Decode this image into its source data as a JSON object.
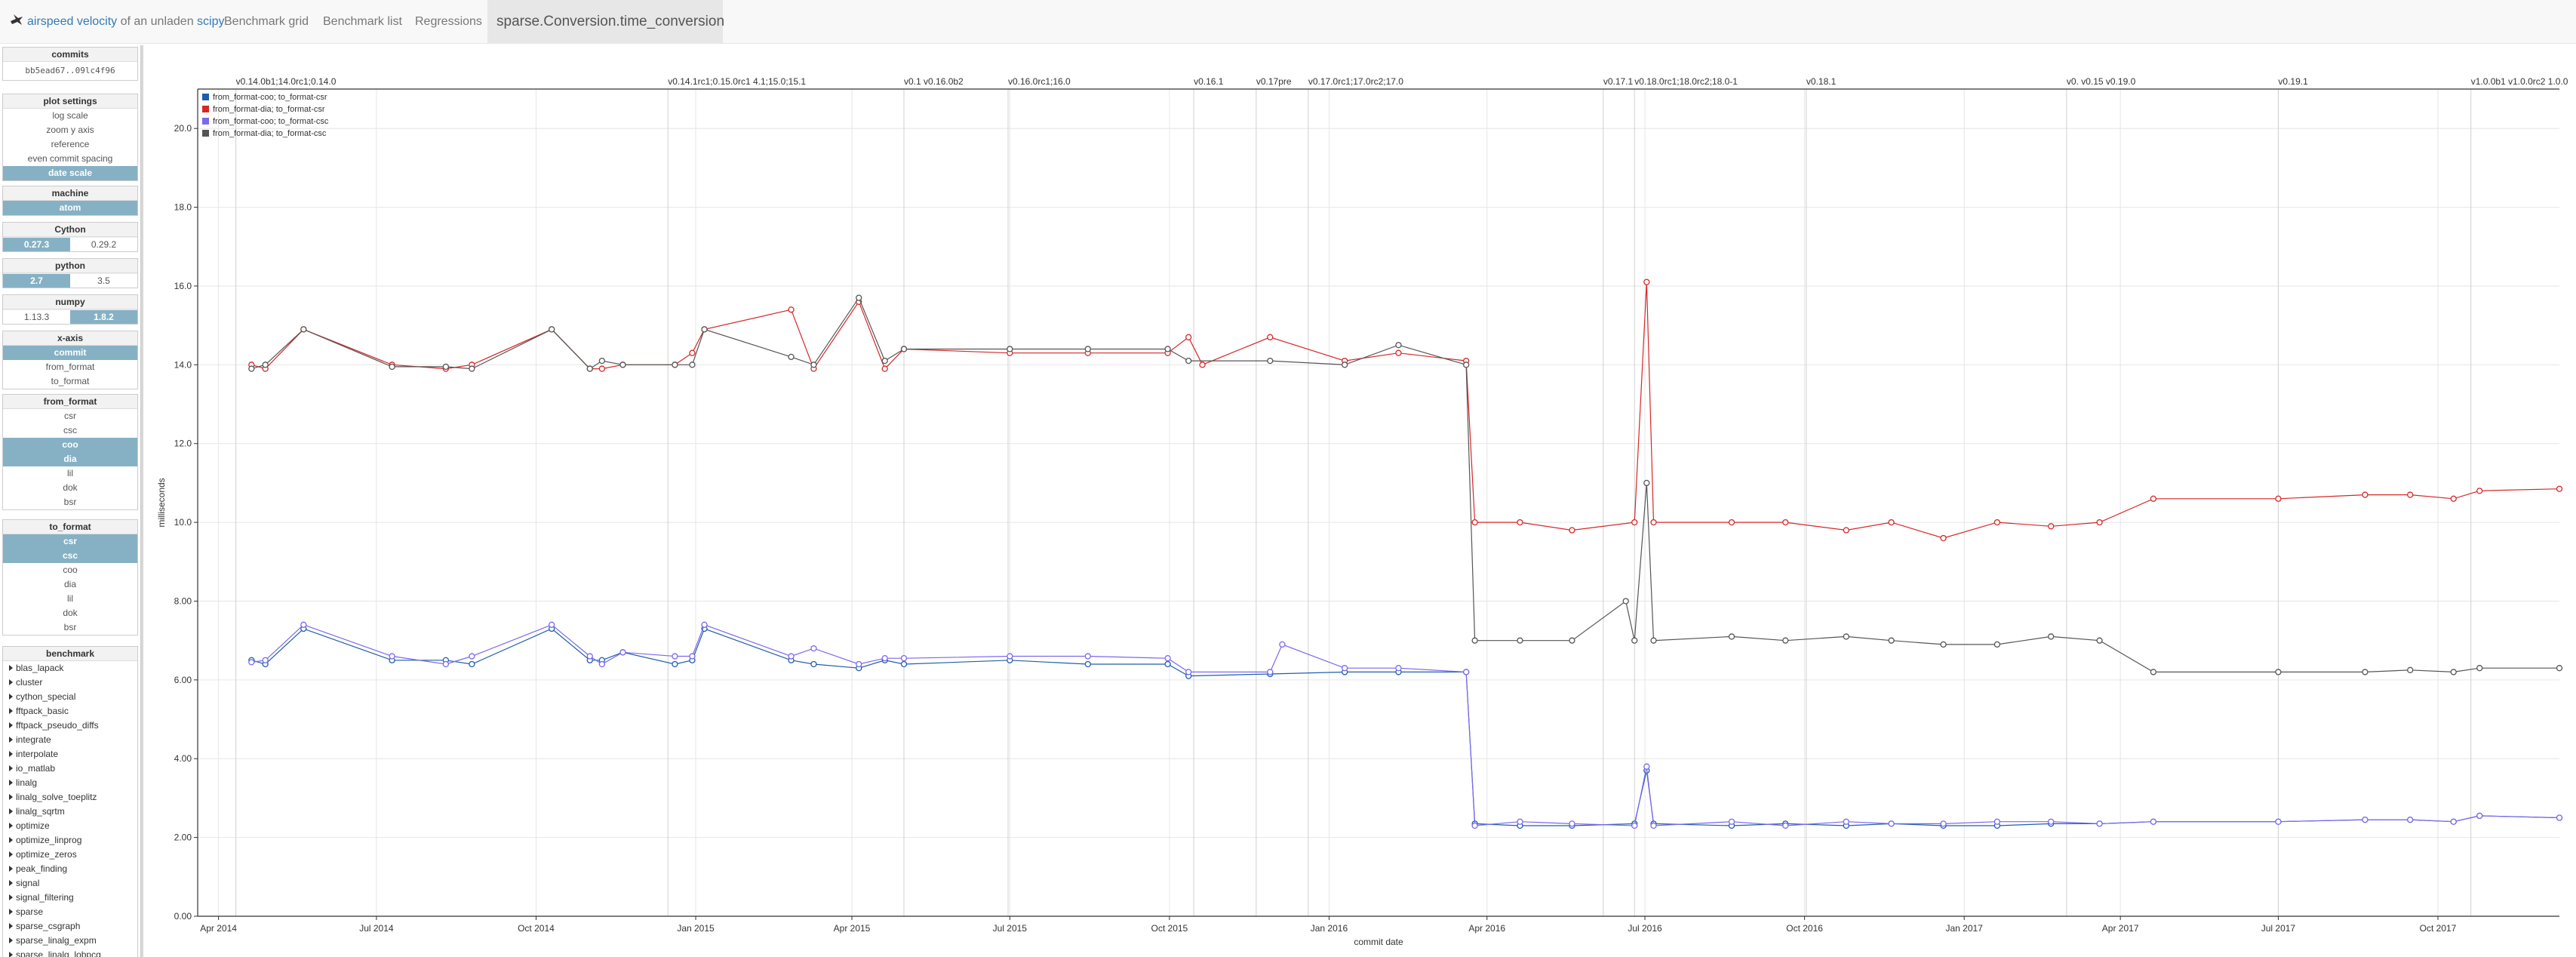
{
  "navbar": {
    "brand_prefix": "airspeed velocity",
    "brand_middle": " of an unladen ",
    "brand_suffix": "scipy",
    "links": [
      "Benchmark grid",
      "Benchmark list",
      "Regressions"
    ],
    "active": "sparse.Conversion.time_conversion"
  },
  "sidebar": {
    "commits": {
      "title": "commits",
      "value": "bb5ead67..09lc4f96"
    },
    "plot_settings": {
      "title": "plot settings",
      "options": [
        {
          "label": "log scale",
          "on": false
        },
        {
          "label": "zoom y axis",
          "on": false
        },
        {
          "label": "reference",
          "on": false
        },
        {
          "label": "even commit spacing",
          "on": false
        },
        {
          "label": "date scale",
          "on": true
        }
      ]
    },
    "machine": {
      "title": "machine",
      "value": "atom"
    },
    "cython": {
      "title": "Cython",
      "a": "0.27.3",
      "b": "0.29.2"
    },
    "python": {
      "title": "python",
      "a": "2.7",
      "b": "3.5"
    },
    "numpy": {
      "title": "numpy",
      "a": "1.13.3",
      "b": "1.8.2"
    },
    "xaxis": {
      "title": "x-axis",
      "options": [
        {
          "label": "commit",
          "on": true
        },
        {
          "label": "from_format",
          "on": false
        },
        {
          "label": "to_format",
          "on": false
        }
      ]
    },
    "from_format": {
      "title": "from_format",
      "options": [
        {
          "label": "csr",
          "on": false
        },
        {
          "label": "csc",
          "on": false
        },
        {
          "label": "coo",
          "on": true
        },
        {
          "label": "dia",
          "on": true
        },
        {
          "label": "lil",
          "on": false
        },
        {
          "label": "dok",
          "on": false
        },
        {
          "label": "bsr",
          "on": false
        }
      ]
    },
    "to_format": {
      "title": "to_format",
      "options": [
        {
          "label": "csr",
          "on": true
        },
        {
          "label": "csc",
          "on": true
        },
        {
          "label": "coo",
          "on": false
        },
        {
          "label": "dia",
          "on": false
        },
        {
          "label": "lil",
          "on": false
        },
        {
          "label": "dok",
          "on": false
        },
        {
          "label": "bsr",
          "on": false
        }
      ]
    },
    "benchmark": {
      "title": "benchmark",
      "items": [
        "blas_lapack",
        "cluster",
        "cython_special",
        "fftpack_basic",
        "fftpack_pseudo_diffs",
        "integrate",
        "interpolate",
        "io_matlab",
        "linalg",
        "linalg_solve_toeplitz",
        "linalg_sqrtm",
        "optimize",
        "optimize_linprog",
        "optimize_zeros",
        "peak_finding",
        "signal",
        "signal_filtering",
        "sparse",
        "sparse_csgraph",
        "sparse_linalg_expm",
        "sparse_linalg_lobpcg"
      ]
    }
  },
  "chart_data": {
    "type": "line",
    "title": "",
    "xlabel": "commit date",
    "ylabel": "milliseconds",
    "x_axis_type": "date",
    "xlim": [
      "2014-03-20",
      "2017-12-10"
    ],
    "ylim": [
      0,
      21
    ],
    "y_ticks": [
      "0.00",
      "2.00",
      "4.00",
      "6.00",
      "8.00",
      "10.0",
      "12.0",
      "14.0",
      "16.0",
      "18.0",
      "20.0"
    ],
    "x_ticks": [
      {
        "label": "Apr 2014",
        "date": "2014-04-01"
      },
      {
        "label": "Jul 2014",
        "date": "2014-07-01"
      },
      {
        "label": "Oct 2014",
        "date": "2014-10-01"
      },
      {
        "label": "Jan 2015",
        "date": "2015-01-01"
      },
      {
        "label": "Apr 2015",
        "date": "2015-04-01"
      },
      {
        "label": "Jul 2015",
        "date": "2015-07-01"
      },
      {
        "label": "Oct 2015",
        "date": "2015-10-01"
      },
      {
        "label": "Jan 2016",
        "date": "2016-01-01"
      },
      {
        "label": "Apr 2016",
        "date": "2016-04-01"
      },
      {
        "label": "Jul 2016",
        "date": "2016-07-01"
      },
      {
        "label": "Oct 2016",
        "date": "2016-10-01"
      },
      {
        "label": "Jan 2017",
        "date": "2017-01-01"
      },
      {
        "label": "Apr 2017",
        "date": "2017-04-01"
      },
      {
        "label": "Jul 2017",
        "date": "2017-07-01"
      },
      {
        "label": "Oct 2017",
        "date": "2017-10-01"
      }
    ],
    "grid": true,
    "legend_position": "top-left",
    "release_tags": [
      {
        "label": "v0.14.0b1;14.0rc1;0.14.0",
        "date": "2014-04-11"
      },
      {
        "label": "v0.14.1rc1;0.15.0rc1 4.1;15.0;15.1",
        "date": "2014-12-16"
      },
      {
        "label": "v0.1 v0.16.0b2",
        "date": "2015-05-01"
      },
      {
        "label": "v0.16.0rc1;16.0",
        "date": "2015-06-30"
      },
      {
        "label": "v0.16.1",
        "date": "2015-10-15"
      },
      {
        "label": "v0.17pre",
        "date": "2015-11-20"
      },
      {
        "label": "v0.17.0rc1;17.0rc2;17.0",
        "date": "2015-12-20"
      },
      {
        "label": "v0.17.1",
        "date": "2016-06-07"
      },
      {
        "label": "v0.18.0rc1;18.0rc2;18.0-1",
        "date": "2016-06-25"
      },
      {
        "label": "v0.18.1",
        "date": "2016-10-02"
      },
      {
        "label": "v0. v0.15 v0.19.0",
        "date": "2017-03-01"
      },
      {
        "label": "v0.19.1",
        "date": "2017-07-01"
      },
      {
        "label": "v1.0.0b1 v1.0.0rc2 1.0.0",
        "date": "2017-10-20"
      }
    ],
    "series": [
      {
        "name": "from_format-coo; to_format-csr",
        "color": "#1f5fa8",
        "points": [
          [
            "2014-04-20",
            6.5
          ],
          [
            "2014-04-28",
            6.4
          ],
          [
            "2014-05-20",
            7.3
          ],
          [
            "2014-07-10",
            6.5
          ],
          [
            "2014-08-10",
            6.5
          ],
          [
            "2014-08-25",
            6.4
          ],
          [
            "2014-10-10",
            7.3
          ],
          [
            "2014-11-01",
            6.5
          ],
          [
            "2014-11-08",
            6.5
          ],
          [
            "2014-11-20",
            6.7
          ],
          [
            "2014-12-20",
            6.4
          ],
          [
            "2014-12-30",
            6.5
          ],
          [
            "2015-01-06",
            7.3
          ],
          [
            "2015-02-25",
            6.5
          ],
          [
            "2015-03-10",
            6.4
          ],
          [
            "2015-04-05",
            6.3
          ],
          [
            "2015-04-20",
            6.5
          ],
          [
            "2015-05-01",
            6.4
          ],
          [
            "2015-07-01",
            6.5
          ],
          [
            "2015-08-15",
            6.4
          ],
          [
            "2015-09-30",
            6.4
          ],
          [
            "2015-10-12",
            6.1
          ],
          [
            "2015-11-28",
            6.15
          ],
          [
            "2016-01-10",
            6.2
          ],
          [
            "2016-02-10",
            6.2
          ],
          [
            "2016-03-20",
            6.2
          ],
          [
            "2016-03-25",
            2.35
          ],
          [
            "2016-04-20",
            2.3
          ],
          [
            "2016-05-20",
            2.3
          ],
          [
            "2016-06-25",
            2.35
          ],
          [
            "2016-07-02",
            3.7
          ],
          [
            "2016-07-06",
            2.35
          ],
          [
            "2016-08-20",
            2.3
          ],
          [
            "2016-09-20",
            2.35
          ],
          [
            "2016-10-25",
            2.3
          ],
          [
            "2016-11-20",
            2.35
          ],
          [
            "2016-12-20",
            2.3
          ],
          [
            "2017-01-20",
            2.3
          ],
          [
            "2017-02-20",
            2.35
          ],
          [
            "2017-03-20",
            2.35
          ],
          [
            "2017-04-20",
            2.4
          ],
          [
            "2017-07-01",
            2.4
          ],
          [
            "2017-08-20",
            2.45
          ],
          [
            "2017-09-15",
            2.45
          ],
          [
            "2017-10-10",
            2.4
          ],
          [
            "2017-10-25",
            2.55
          ],
          [
            "2017-12-10",
            2.5
          ]
        ]
      },
      {
        "name": "from_format-dia; to_format-csr",
        "color": "#d62728",
        "points": [
          [
            "2014-04-20",
            14.0
          ],
          [
            "2014-04-28",
            13.9
          ],
          [
            "2014-05-20",
            14.9
          ],
          [
            "2014-07-10",
            14.0
          ],
          [
            "2014-08-10",
            13.9
          ],
          [
            "2014-08-25",
            14.0
          ],
          [
            "2014-10-10",
            14.9
          ],
          [
            "2014-11-01",
            13.9
          ],
          [
            "2014-11-08",
            13.9
          ],
          [
            "2014-11-20",
            14.0
          ],
          [
            "2014-12-20",
            14.0
          ],
          [
            "2014-12-30",
            14.3
          ],
          [
            "2015-01-06",
            14.9
          ],
          [
            "2015-02-25",
            15.4
          ],
          [
            "2015-03-10",
            13.9
          ],
          [
            "2015-04-05",
            15.6
          ],
          [
            "2015-04-20",
            13.9
          ],
          [
            "2015-05-01",
            14.4
          ],
          [
            "2015-07-01",
            14.3
          ],
          [
            "2015-08-15",
            14.3
          ],
          [
            "2015-09-30",
            14.3
          ],
          [
            "2015-10-12",
            14.7
          ],
          [
            "2015-10-20",
            14.0
          ],
          [
            "2015-11-28",
            14.7
          ],
          [
            "2016-01-10",
            14.1
          ],
          [
            "2016-02-10",
            14.3
          ],
          [
            "2016-03-20",
            14.1
          ],
          [
            "2016-03-25",
            10.0
          ],
          [
            "2016-04-20",
            10.0
          ],
          [
            "2016-05-20",
            9.8
          ],
          [
            "2016-06-25",
            10.0
          ],
          [
            "2016-07-02",
            16.1
          ],
          [
            "2016-07-06",
            10.0
          ],
          [
            "2016-08-20",
            10.0
          ],
          [
            "2016-09-20",
            10.0
          ],
          [
            "2016-10-25",
            9.8
          ],
          [
            "2016-11-20",
            10.0
          ],
          [
            "2016-12-20",
            9.6
          ],
          [
            "2017-01-20",
            10.0
          ],
          [
            "2017-02-20",
            9.9
          ],
          [
            "2017-03-20",
            10.0
          ],
          [
            "2017-04-20",
            10.6
          ],
          [
            "2017-07-01",
            10.6
          ],
          [
            "2017-08-20",
            10.7
          ],
          [
            "2017-09-15",
            10.7
          ],
          [
            "2017-10-10",
            10.6
          ],
          [
            "2017-10-25",
            10.8
          ],
          [
            "2017-12-10",
            10.85
          ]
        ]
      },
      {
        "name": "from_format-coo; to_format-csc",
        "color": "#7b68ee",
        "points": [
          [
            "2014-04-20",
            6.45
          ],
          [
            "2014-04-28",
            6.5
          ],
          [
            "2014-05-20",
            7.4
          ],
          [
            "2014-07-10",
            6.6
          ],
          [
            "2014-08-10",
            6.4
          ],
          [
            "2014-08-25",
            6.6
          ],
          [
            "2014-10-10",
            7.4
          ],
          [
            "2014-11-01",
            6.6
          ],
          [
            "2014-11-08",
            6.4
          ],
          [
            "2014-11-20",
            6.7
          ],
          [
            "2014-12-20",
            6.6
          ],
          [
            "2014-12-30",
            6.6
          ],
          [
            "2015-01-06",
            7.4
          ],
          [
            "2015-02-25",
            6.6
          ],
          [
            "2015-03-10",
            6.8
          ],
          [
            "2015-04-05",
            6.4
          ],
          [
            "2015-04-20",
            6.55
          ],
          [
            "2015-05-01",
            6.55
          ],
          [
            "2015-07-01",
            6.6
          ],
          [
            "2015-08-15",
            6.6
          ],
          [
            "2015-09-30",
            6.55
          ],
          [
            "2015-10-12",
            6.2
          ],
          [
            "2015-11-28",
            6.2
          ],
          [
            "2015-12-05",
            6.9
          ],
          [
            "2016-01-10",
            6.3
          ],
          [
            "2016-02-10",
            6.3
          ],
          [
            "2016-03-20",
            6.2
          ],
          [
            "2016-03-25",
            2.3
          ],
          [
            "2016-04-20",
            2.4
          ],
          [
            "2016-05-20",
            2.35
          ],
          [
            "2016-06-25",
            2.3
          ],
          [
            "2016-07-02",
            3.8
          ],
          [
            "2016-07-06",
            2.3
          ],
          [
            "2016-08-20",
            2.4
          ],
          [
            "2016-09-20",
            2.3
          ],
          [
            "2016-10-25",
            2.4
          ],
          [
            "2016-11-20",
            2.35
          ],
          [
            "2016-12-20",
            2.35
          ],
          [
            "2017-01-20",
            2.4
          ],
          [
            "2017-02-20",
            2.4
          ],
          [
            "2017-03-20",
            2.35
          ],
          [
            "2017-04-20",
            2.4
          ],
          [
            "2017-07-01",
            2.4
          ],
          [
            "2017-08-20",
            2.45
          ],
          [
            "2017-09-15",
            2.45
          ],
          [
            "2017-10-10",
            2.4
          ],
          [
            "2017-10-25",
            2.55
          ],
          [
            "2017-12-10",
            2.5
          ]
        ]
      },
      {
        "name": "from_format-dia; to_format-csc",
        "color": "#555555",
        "points": [
          [
            "2014-04-20",
            13.9
          ],
          [
            "2014-04-28",
            14.0
          ],
          [
            "2014-05-20",
            14.9
          ],
          [
            "2014-07-10",
            13.95
          ],
          [
            "2014-08-10",
            13.95
          ],
          [
            "2014-08-25",
            13.9
          ],
          [
            "2014-10-10",
            14.9
          ],
          [
            "2014-11-01",
            13.9
          ],
          [
            "2014-11-08",
            14.1
          ],
          [
            "2014-11-20",
            14.0
          ],
          [
            "2014-12-20",
            14.0
          ],
          [
            "2014-12-30",
            14.0
          ],
          [
            "2015-01-06",
            14.9
          ],
          [
            "2015-02-25",
            14.2
          ],
          [
            "2015-03-10",
            14.0
          ],
          [
            "2015-04-05",
            15.7
          ],
          [
            "2015-04-20",
            14.1
          ],
          [
            "2015-05-01",
            14.4
          ],
          [
            "2015-07-01",
            14.4
          ],
          [
            "2015-08-15",
            14.4
          ],
          [
            "2015-09-30",
            14.4
          ],
          [
            "2015-10-12",
            14.1
          ],
          [
            "2015-11-28",
            14.1
          ],
          [
            "2016-01-10",
            14.0
          ],
          [
            "2016-02-10",
            14.5
          ],
          [
            "2016-03-20",
            14.0
          ],
          [
            "2016-03-25",
            7.0
          ],
          [
            "2016-04-20",
            7.0
          ],
          [
            "2016-05-20",
            7.0
          ],
          [
            "2016-06-20",
            8.0
          ],
          [
            "2016-06-25",
            7.0
          ],
          [
            "2016-07-02",
            11.0
          ],
          [
            "2016-07-06",
            7.0
          ],
          [
            "2016-08-20",
            7.1
          ],
          [
            "2016-09-20",
            7.0
          ],
          [
            "2016-10-25",
            7.1
          ],
          [
            "2016-11-20",
            7.0
          ],
          [
            "2016-12-20",
            6.9
          ],
          [
            "2017-01-20",
            6.9
          ],
          [
            "2017-02-20",
            7.1
          ],
          [
            "2017-03-20",
            7.0
          ],
          [
            "2017-04-20",
            6.2
          ],
          [
            "2017-07-01",
            6.2
          ],
          [
            "2017-08-20",
            6.2
          ],
          [
            "2017-09-15",
            6.25
          ],
          [
            "2017-10-10",
            6.2
          ],
          [
            "2017-10-25",
            6.3
          ],
          [
            "2017-12-10",
            6.3
          ]
        ]
      }
    ]
  }
}
